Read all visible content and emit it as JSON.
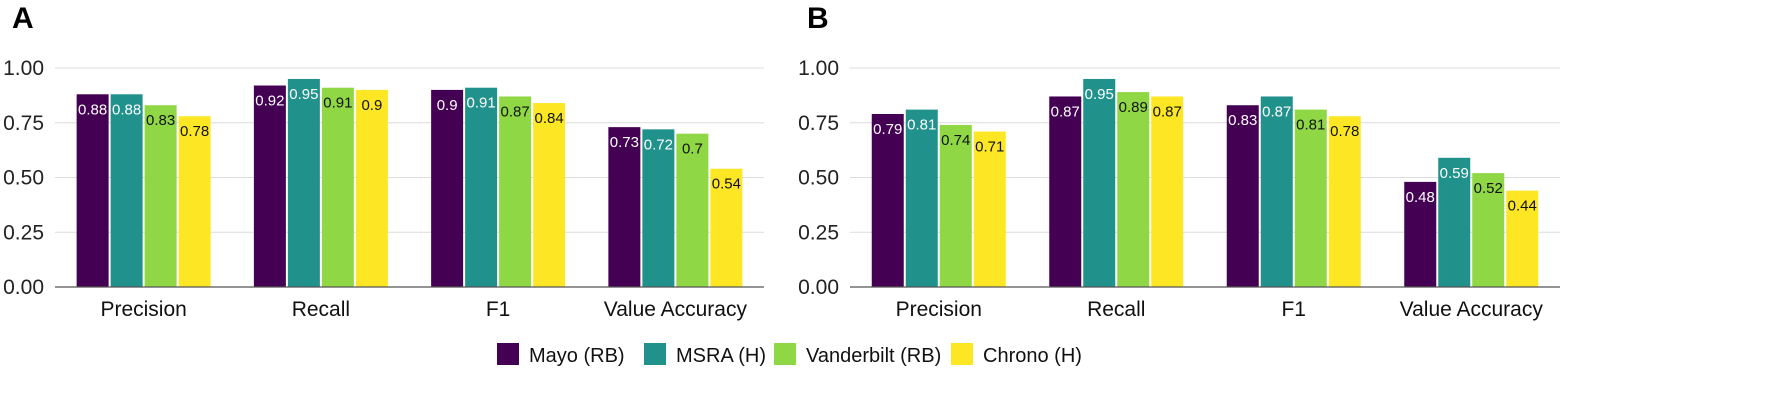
{
  "legend": [
    {
      "name": "Mayo (RB)",
      "color": "#440154"
    },
    {
      "name": "MSRA (H)",
      "color": "#21918c"
    },
    {
      "name": "Vanderbilt (RB)",
      "color": "#8fd744"
    },
    {
      "name": "Chrono (H)",
      "color": "#fde725"
    }
  ],
  "chart_data": [
    {
      "panel": "A",
      "type": "bar",
      "categories": [
        "Precision",
        "Recall",
        "F1",
        "Value Accuracy"
      ],
      "series": [
        {
          "name": "Mayo (RB)",
          "values": [
            0.88,
            0.92,
            0.9,
            0.73
          ]
        },
        {
          "name": "MSRA (H)",
          "values": [
            0.88,
            0.95,
            0.91,
            0.72
          ]
        },
        {
          "name": "Vanderbilt (RB)",
          "values": [
            0.83,
            0.91,
            0.87,
            0.7
          ]
        },
        {
          "name": "Chrono (H)",
          "values": [
            0.78,
            0.9,
            0.84,
            0.54
          ]
        }
      ],
      "ylim": [
        0,
        1
      ],
      "yticks": [
        "0.00",
        "0.25",
        "0.50",
        "0.75",
        "1.00"
      ],
      "grid": true
    },
    {
      "panel": "B",
      "type": "bar",
      "categories": [
        "Precision",
        "Recall",
        "F1",
        "Value Accuracy"
      ],
      "series": [
        {
          "name": "Mayo (RB)",
          "values": [
            0.79,
            0.87,
            0.83,
            0.48
          ]
        },
        {
          "name": "MSRA (H)",
          "values": [
            0.81,
            0.95,
            0.87,
            0.59
          ]
        },
        {
          "name": "Vanderbilt (RB)",
          "values": [
            0.74,
            0.89,
            0.81,
            0.52
          ]
        },
        {
          "name": "Chrono (H)",
          "values": [
            0.71,
            0.87,
            0.78,
            0.44
          ]
        }
      ],
      "ylim": [
        0,
        1
      ],
      "yticks": [
        "0.00",
        "0.25",
        "0.50",
        "0.75",
        "1.00"
      ],
      "grid": true
    }
  ]
}
